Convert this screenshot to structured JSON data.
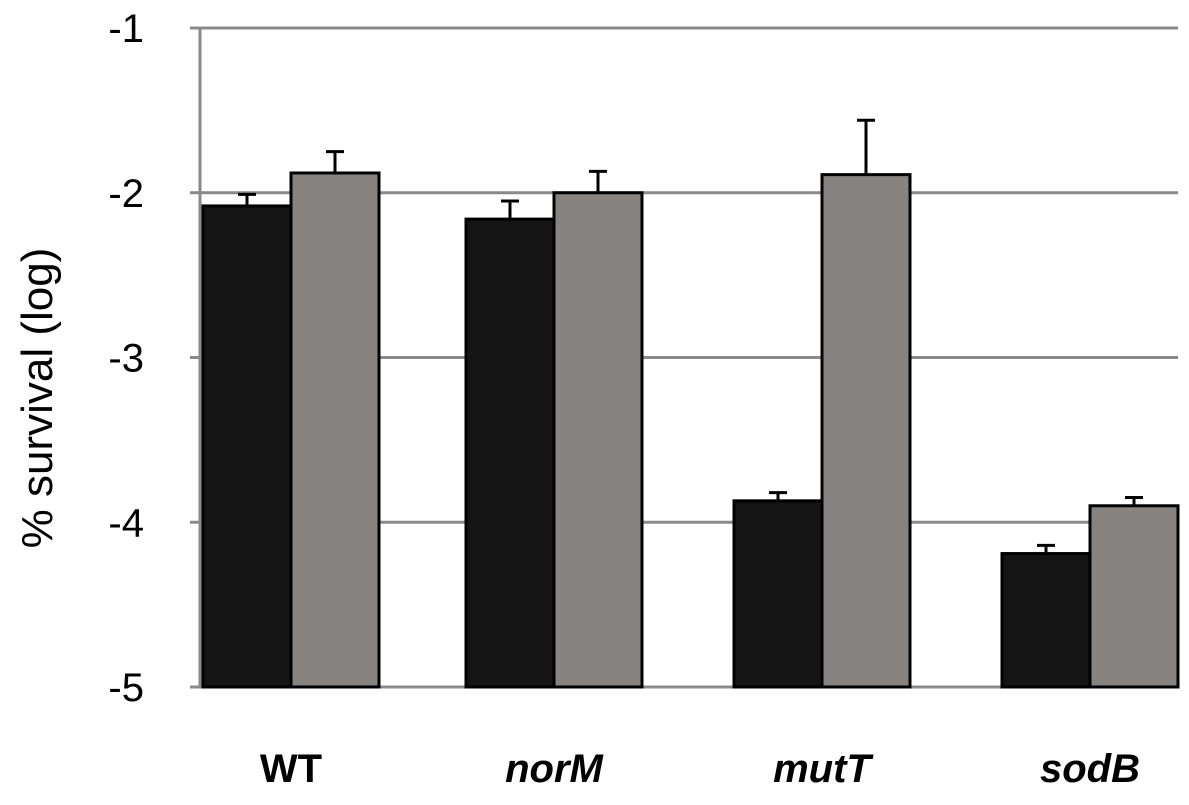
{
  "chart_data": {
    "type": "bar",
    "ylabel": "% survival (log)",
    "ylim": [
      -5,
      -1
    ],
    "yticks": [
      -1,
      -2,
      -3,
      -4,
      -5
    ],
    "ytick_labels": [
      "-1",
      "-2",
      "-3",
      "-4",
      "-5"
    ],
    "categories": [
      "WT",
      "norM",
      "mutT",
      "sodB"
    ],
    "category_italic": [
      false,
      true,
      true,
      true
    ],
    "grid": true,
    "legend": "none",
    "series": [
      {
        "color": "#141414",
        "values": [
          -2.08,
          -2.16,
          -3.87,
          -4.19
        ],
        "errors": [
          0.07,
          0.11,
          0.05,
          0.05
        ]
      },
      {
        "color": "#878381",
        "values": [
          -1.88,
          -2.0,
          -1.89,
          -3.9
        ],
        "errors": [
          0.13,
          0.13,
          0.33,
          0.05
        ]
      }
    ]
  }
}
